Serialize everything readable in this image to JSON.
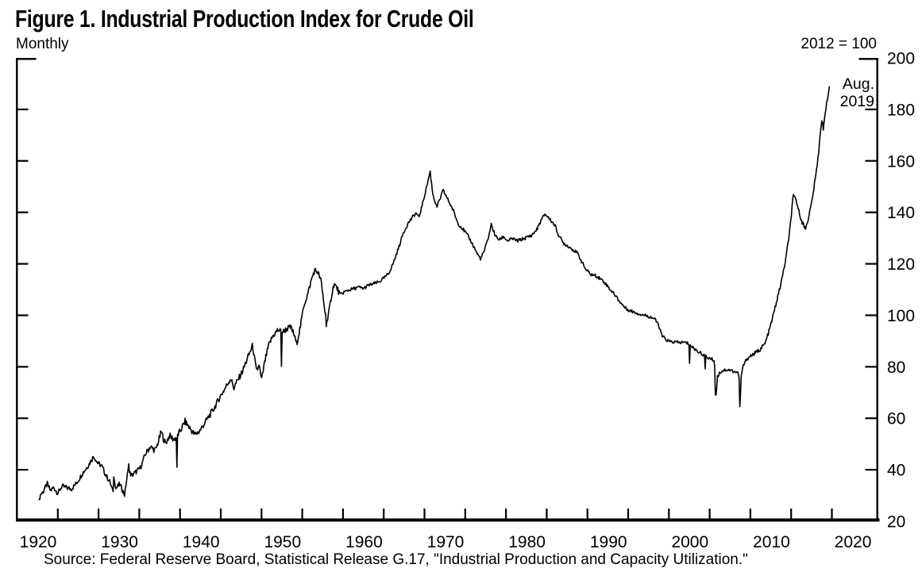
{
  "figure": {
    "title": "Figure 1.  Industrial Production Index for Crude Oil",
    "frequency_label": "Monthly",
    "index_note": "2012 = 100",
    "end_annotation": {
      "line1": "Aug.",
      "line2": "2019"
    },
    "source": "Source:  Federal Reserve Board, Statistical Release G.17, \"Industrial Production and Capacity Utilization.\""
  },
  "chart_data": {
    "type": "line",
    "title": "Figure 1. Industrial Production Index for Crude Oil",
    "series_name": "Industrial production index: crude oil",
    "unit": "Index, 2012 = 100",
    "frequency": "Monthly",
    "line_color": "#000000",
    "x_range": [
      1920,
      2025.7
    ],
    "y_range": [
      20,
      200
    ],
    "y_ticks": [
      20,
      40,
      60,
      80,
      100,
      120,
      140,
      160,
      180,
      200
    ],
    "x_tick_start": 1925,
    "x_tick_end": 2020,
    "x_tick_interval": 5,
    "x_label_years": [
      1920,
      1930,
      1940,
      1950,
      1960,
      1970,
      1980,
      1990,
      2000,
      2010,
      2020
    ],
    "grid": false,
    "legend": "none",
    "end_point": {
      "label": "Aug. 2019",
      "year": 2019.667,
      "value": 188.8
    },
    "anchors": [
      [
        1922.7,
        28.5
      ],
      [
        1922.9,
        30.5
      ],
      [
        1923.2,
        31.5
      ],
      [
        1923.7,
        34.5
      ],
      [
        1924.1,
        31.8
      ],
      [
        1924.5,
        33.2
      ],
      [
        1925.0,
        30.8
      ],
      [
        1925.5,
        33.6
      ],
      [
        1926.1,
        33.0
      ],
      [
        1926.7,
        32.6
      ],
      [
        1927.3,
        34.8
      ],
      [
        1928.0,
        38.5
      ],
      [
        1928.7,
        41.5
      ],
      [
        1929.4,
        45.3
      ],
      [
        1929.9,
        42.6
      ],
      [
        1930.4,
        41.4
      ],
      [
        1930.9,
        37.9
      ],
      [
        1931.4,
        35.2
      ],
      [
        1931.7,
        31.9
      ],
      [
        1931.9,
        38.0
      ],
      [
        1932.1,
        32.6
      ],
      [
        1932.6,
        34.4
      ],
      [
        1933.2,
        30.3
      ],
      [
        1933.6,
        39.5
      ],
      [
        1934.1,
        37.8
      ],
      [
        1934.6,
        39.2
      ],
      [
        1935.1,
        40.6
      ],
      [
        1935.8,
        46.4
      ],
      [
        1936.3,
        48.9
      ],
      [
        1937.0,
        47.5
      ],
      [
        1937.7,
        54.7
      ],
      [
        1938.2,
        50.1
      ],
      [
        1938.7,
        53.2
      ],
      [
        1939.2,
        51.8
      ],
      [
        1939.5,
        52.5
      ],
      [
        1940.0,
        54.8
      ],
      [
        1940.6,
        58.8
      ],
      [
        1941.2,
        56.2
      ],
      [
        1941.8,
        53.6
      ],
      [
        1942.4,
        55.0
      ],
      [
        1943.0,
        58.0
      ],
      [
        1943.6,
        61.0
      ],
      [
        1944.2,
        64.0
      ],
      [
        1944.9,
        68.3
      ],
      [
        1945.6,
        72.0
      ],
      [
        1946.2,
        75.5
      ],
      [
        1946.6,
        72.0
      ],
      [
        1947.1,
        74.8
      ],
      [
        1947.7,
        78.5
      ],
      [
        1948.3,
        83.5
      ],
      [
        1948.9,
        88.3
      ],
      [
        1949.4,
        77.8
      ],
      [
        1949.7,
        81.0
      ],
      [
        1950.0,
        74.5
      ],
      [
        1950.4,
        82.0
      ],
      [
        1950.9,
        88.5
      ],
      [
        1951.4,
        92.0
      ],
      [
        1952.0,
        94.3
      ],
      [
        1952.6,
        93.5
      ],
      [
        1953.1,
        94.8
      ],
      [
        1953.6,
        95.3
      ],
      [
        1954.0,
        92.5
      ],
      [
        1954.3,
        88.8
      ],
      [
        1954.8,
        96.0
      ],
      [
        1955.2,
        104.0
      ],
      [
        1955.7,
        108.5
      ],
      [
        1956.1,
        113.5
      ],
      [
        1956.5,
        117.5
      ],
      [
        1956.9,
        116.8
      ],
      [
        1957.3,
        113.5
      ],
      [
        1957.8,
        101.0
      ],
      [
        1958.1,
        97.5
      ],
      [
        1958.6,
        108.0
      ],
      [
        1958.9,
        112.3
      ],
      [
        1959.3,
        110.3
      ],
      [
        1959.7,
        107.5
      ],
      [
        1960.1,
        109.0
      ],
      [
        1960.7,
        109.8
      ],
      [
        1961.3,
        110.3
      ],
      [
        1961.9,
        110.9
      ],
      [
        1962.5,
        110.4
      ],
      [
        1963.1,
        111.6
      ],
      [
        1963.8,
        112.3
      ],
      [
        1964.4,
        112.9
      ],
      [
        1965.0,
        114.4
      ],
      [
        1965.6,
        116.2
      ],
      [
        1966.2,
        120.5
      ],
      [
        1966.8,
        126.0
      ],
      [
        1967.4,
        132.0
      ],
      [
        1968.0,
        135.8
      ],
      [
        1968.6,
        138.4
      ],
      [
        1969.0,
        139.8
      ],
      [
        1969.3,
        137.8
      ],
      [
        1969.8,
        143.8
      ],
      [
        1970.3,
        150.5
      ],
      [
        1970.7,
        155.8
      ],
      [
        1971.0,
        147.5
      ],
      [
        1971.5,
        142.0
      ],
      [
        1972.0,
        146.0
      ],
      [
        1972.3,
        148.6
      ],
      [
        1972.9,
        144.8
      ],
      [
        1973.5,
        141.0
      ],
      [
        1974.1,
        135.8
      ],
      [
        1974.8,
        133.2
      ],
      [
        1975.4,
        130.5
      ],
      [
        1976.0,
        127.0
      ],
      [
        1976.5,
        123.8
      ],
      [
        1976.9,
        121.9
      ],
      [
        1977.4,
        125.5
      ],
      [
        1977.9,
        131.0
      ],
      [
        1978.2,
        135.3
      ],
      [
        1978.7,
        130.8
      ],
      [
        1979.2,
        129.3
      ],
      [
        1979.7,
        130.6
      ],
      [
        1980.2,
        128.9
      ],
      [
        1980.8,
        129.8
      ],
      [
        1981.4,
        128.9
      ],
      [
        1982.0,
        129.6
      ],
      [
        1982.6,
        130.3
      ],
      [
        1983.2,
        131.2
      ],
      [
        1983.8,
        133.4
      ],
      [
        1984.3,
        136.8
      ],
      [
        1984.8,
        139.4
      ],
      [
        1985.4,
        137.3
      ],
      [
        1986.0,
        135.0
      ],
      [
        1986.5,
        130.9
      ],
      [
        1987.0,
        128.2
      ],
      [
        1987.6,
        126.9
      ],
      [
        1988.2,
        125.6
      ],
      [
        1988.8,
        124.0
      ],
      [
        1989.3,
        120.9
      ],
      [
        1989.8,
        117.8
      ],
      [
        1990.4,
        115.9
      ],
      [
        1991.0,
        115.4
      ],
      [
        1991.6,
        114.3
      ],
      [
        1992.2,
        112.4
      ],
      [
        1992.8,
        110.1
      ],
      [
        1993.4,
        107.8
      ],
      [
        1994.0,
        105.2
      ],
      [
        1994.6,
        103.0
      ],
      [
        1995.2,
        101.8
      ],
      [
        1995.9,
        101.1
      ],
      [
        1996.5,
        100.4
      ],
      [
        1997.1,
        100.0
      ],
      [
        1997.7,
        99.4
      ],
      [
        1998.2,
        98.7
      ],
      [
        1998.7,
        96.5
      ],
      [
        1999.1,
        92.3
      ],
      [
        1999.6,
        90.6
      ],
      [
        2000.1,
        89.8
      ],
      [
        2000.7,
        89.6
      ],
      [
        2001.3,
        89.4
      ],
      [
        2001.9,
        89.5
      ],
      [
        2002.4,
        89.0
      ],
      [
        2002.8,
        87.8
      ],
      [
        2003.3,
        86.6
      ],
      [
        2003.8,
        85.5
      ],
      [
        2004.2,
        84.8
      ],
      [
        2004.7,
        83.6
      ],
      [
        2005.1,
        83.2
      ],
      [
        2005.6,
        82.4
      ],
      [
        2005.72,
        66.5
      ],
      [
        2005.95,
        76.0
      ],
      [
        2006.2,
        77.6
      ],
      [
        2006.7,
        78.7
      ],
      [
        2007.2,
        78.9
      ],
      [
        2007.8,
        78.4
      ],
      [
        2008.3,
        77.9
      ],
      [
        2008.6,
        77.2
      ],
      [
        2008.72,
        61.8
      ],
      [
        2008.85,
        76.0
      ],
      [
        2009.1,
        80.2
      ],
      [
        2009.5,
        82.8
      ],
      [
        2010.0,
        84.2
      ],
      [
        2010.6,
        85.3
      ],
      [
        2011.2,
        86.8
      ],
      [
        2011.8,
        89.0
      ],
      [
        2012.3,
        94.0
      ],
      [
        2012.8,
        100.0
      ],
      [
        2013.3,
        106.5
      ],
      [
        2013.8,
        113.0
      ],
      [
        2014.3,
        121.0
      ],
      [
        2014.8,
        132.0
      ],
      [
        2015.25,
        146.3
      ],
      [
        2015.6,
        145.0
      ],
      [
        2016.0,
        139.8
      ],
      [
        2016.4,
        135.8
      ],
      [
        2016.75,
        133.6
      ],
      [
        2017.1,
        137.5
      ],
      [
        2017.5,
        143.5
      ],
      [
        2017.9,
        151.5
      ],
      [
        2018.3,
        161.0
      ],
      [
        2018.65,
        173.5
      ],
      [
        2018.8,
        176.0
      ],
      [
        2018.95,
        171.5
      ],
      [
        2019.15,
        178.5
      ],
      [
        2019.4,
        183.5
      ],
      [
        2019.58,
        186.0
      ],
      [
        2019.667,
        188.8
      ]
    ],
    "spikes": [
      [
        1931.75,
        31.5
      ],
      [
        1933.7,
        42.3
      ],
      [
        1939.6,
        41.0
      ],
      [
        1946.6,
        71.0
      ],
      [
        1952.42,
        80.2
      ],
      [
        1957.95,
        95.6
      ],
      [
        2002.55,
        81.4
      ],
      [
        2004.45,
        79.2
      ]
    ],
    "noise_eras": [
      [
        1922,
        1936,
        1.0
      ],
      [
        1936,
        1943,
        1.3
      ],
      [
        1943,
        1960,
        1.2
      ],
      [
        1960,
        1992,
        0.65
      ],
      [
        1992,
        2010,
        0.65
      ],
      [
        2010,
        2019.7,
        0.8
      ]
    ]
  }
}
